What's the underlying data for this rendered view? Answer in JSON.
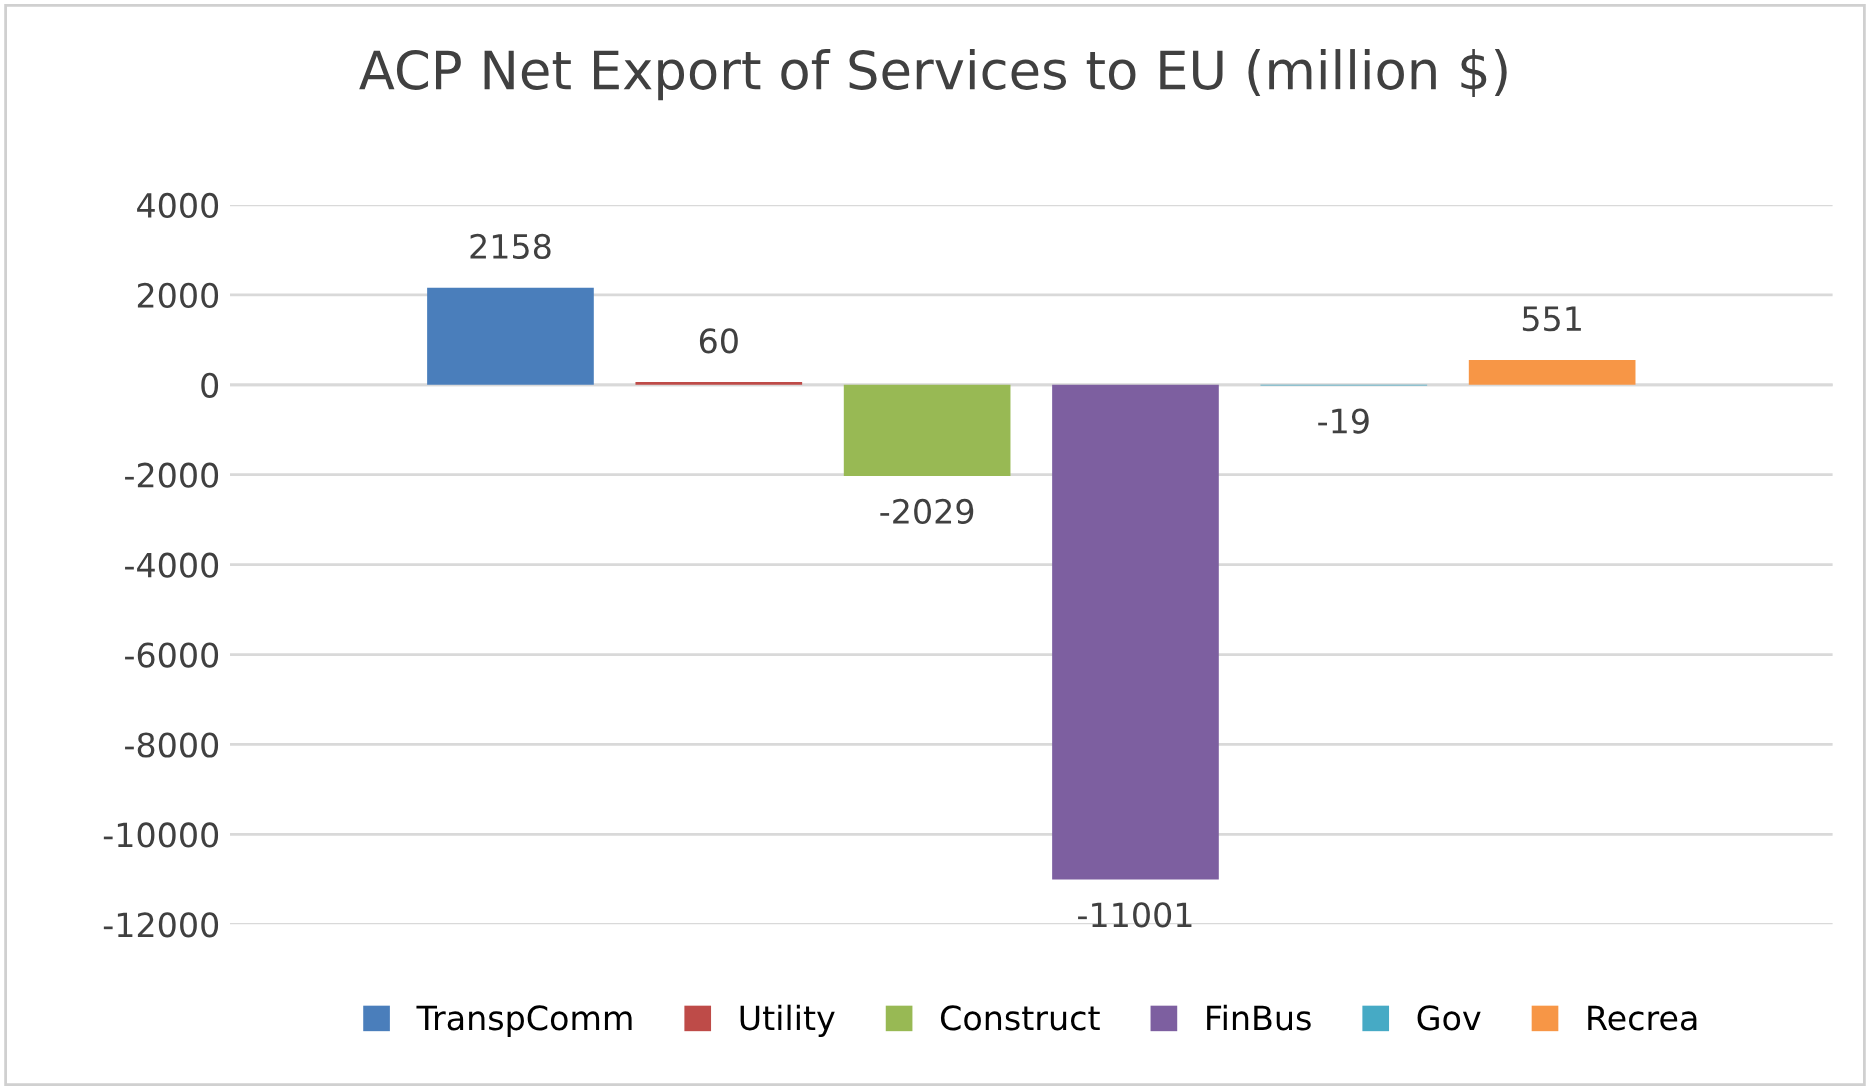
{
  "chart_data": {
    "type": "bar",
    "title": "ACP Net Export of Services to EU (million $)",
    "categories": [
      null
    ],
    "series": [
      {
        "name": "TranspComm",
        "color": "#4a7ebb",
        "values": [
          2158
        ]
      },
      {
        "name": "Utility",
        "color": "#be4b48",
        "values": [
          60
        ]
      },
      {
        "name": "Construct",
        "color": "#98b954",
        "values": [
          -2029
        ]
      },
      {
        "name": "FinBus",
        "color": "#7d5fa0",
        "values": [
          -11001
        ]
      },
      {
        "name": "Gov",
        "color": "#46aac5",
        "values": [
          -19
        ]
      },
      {
        "name": "Recrea",
        "color": "#f79646",
        "values": [
          551
        ]
      }
    ],
    "ylim": [
      -12000,
      4000
    ],
    "yticks": [
      -12000,
      -10000,
      -8000,
      -6000,
      -4000,
      -2000,
      0,
      2000,
      4000
    ],
    "grid": "y",
    "legend": "bottom",
    "data_labels": true
  }
}
